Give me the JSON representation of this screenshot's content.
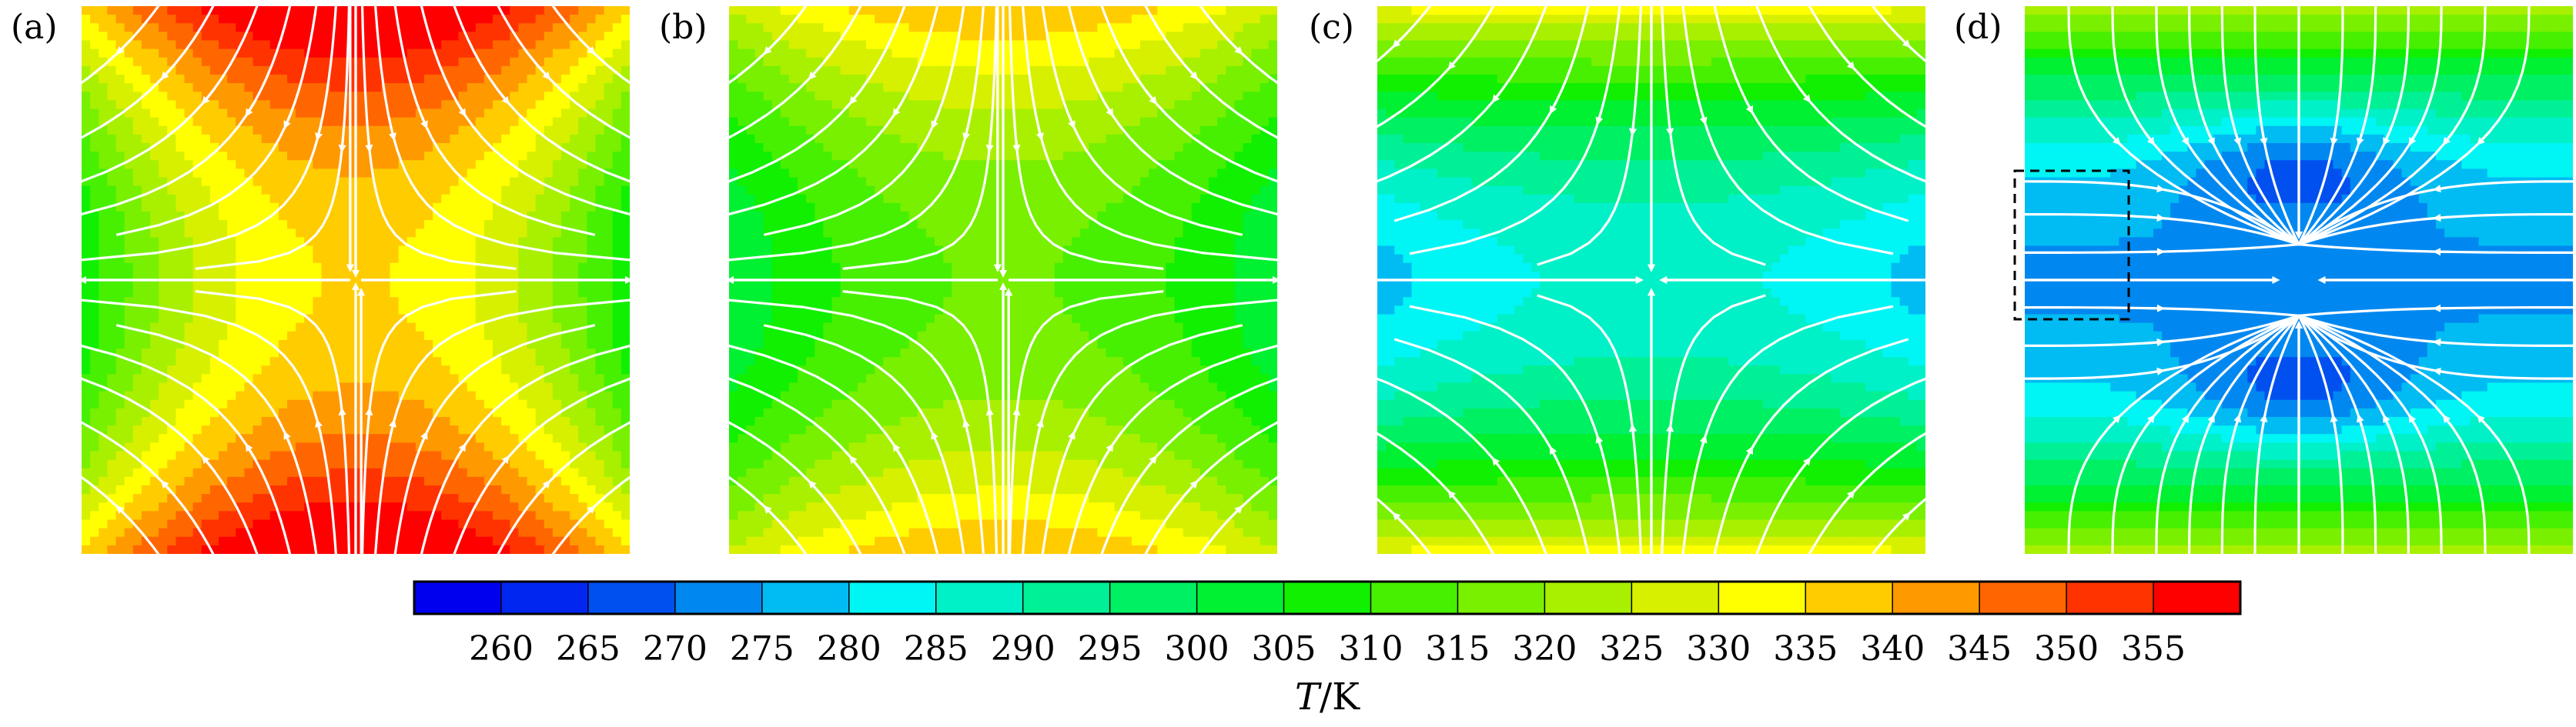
{
  "panels": [
    {
      "label": "(a)",
      "field": "a",
      "lines": "a"
    },
    {
      "label": "(b)",
      "field": "b",
      "lines": "a"
    },
    {
      "label": "(c)",
      "field": "c",
      "lines": "c"
    },
    {
      "label": "(d)",
      "field": "d",
      "lines": "d"
    }
  ],
  "colorbar": {
    "ticks": [
      "260",
      "265",
      "270",
      "275",
      "280",
      "285",
      "290",
      "295",
      "300",
      "305",
      "310",
      "315",
      "320",
      "325",
      "330",
      "335",
      "340",
      "345",
      "350",
      "355"
    ],
    "title_italic": "T",
    "title_rest": "/K",
    "colors": [
      "#0000ee",
      "#0026f0",
      "#0050f0",
      "#0088f0",
      "#00bcf2",
      "#00f5f5",
      "#00f0c8",
      "#00f096",
      "#00f064",
      "#00f032",
      "#10f000",
      "#46f000",
      "#78f000",
      "#a8f000",
      "#d6f000",
      "#ffff00",
      "#ffcc00",
      "#ff9900",
      "#ff6600",
      "#ff3300",
      "#ff0000"
    ],
    "streamline_color": "#ffffff"
  }
}
